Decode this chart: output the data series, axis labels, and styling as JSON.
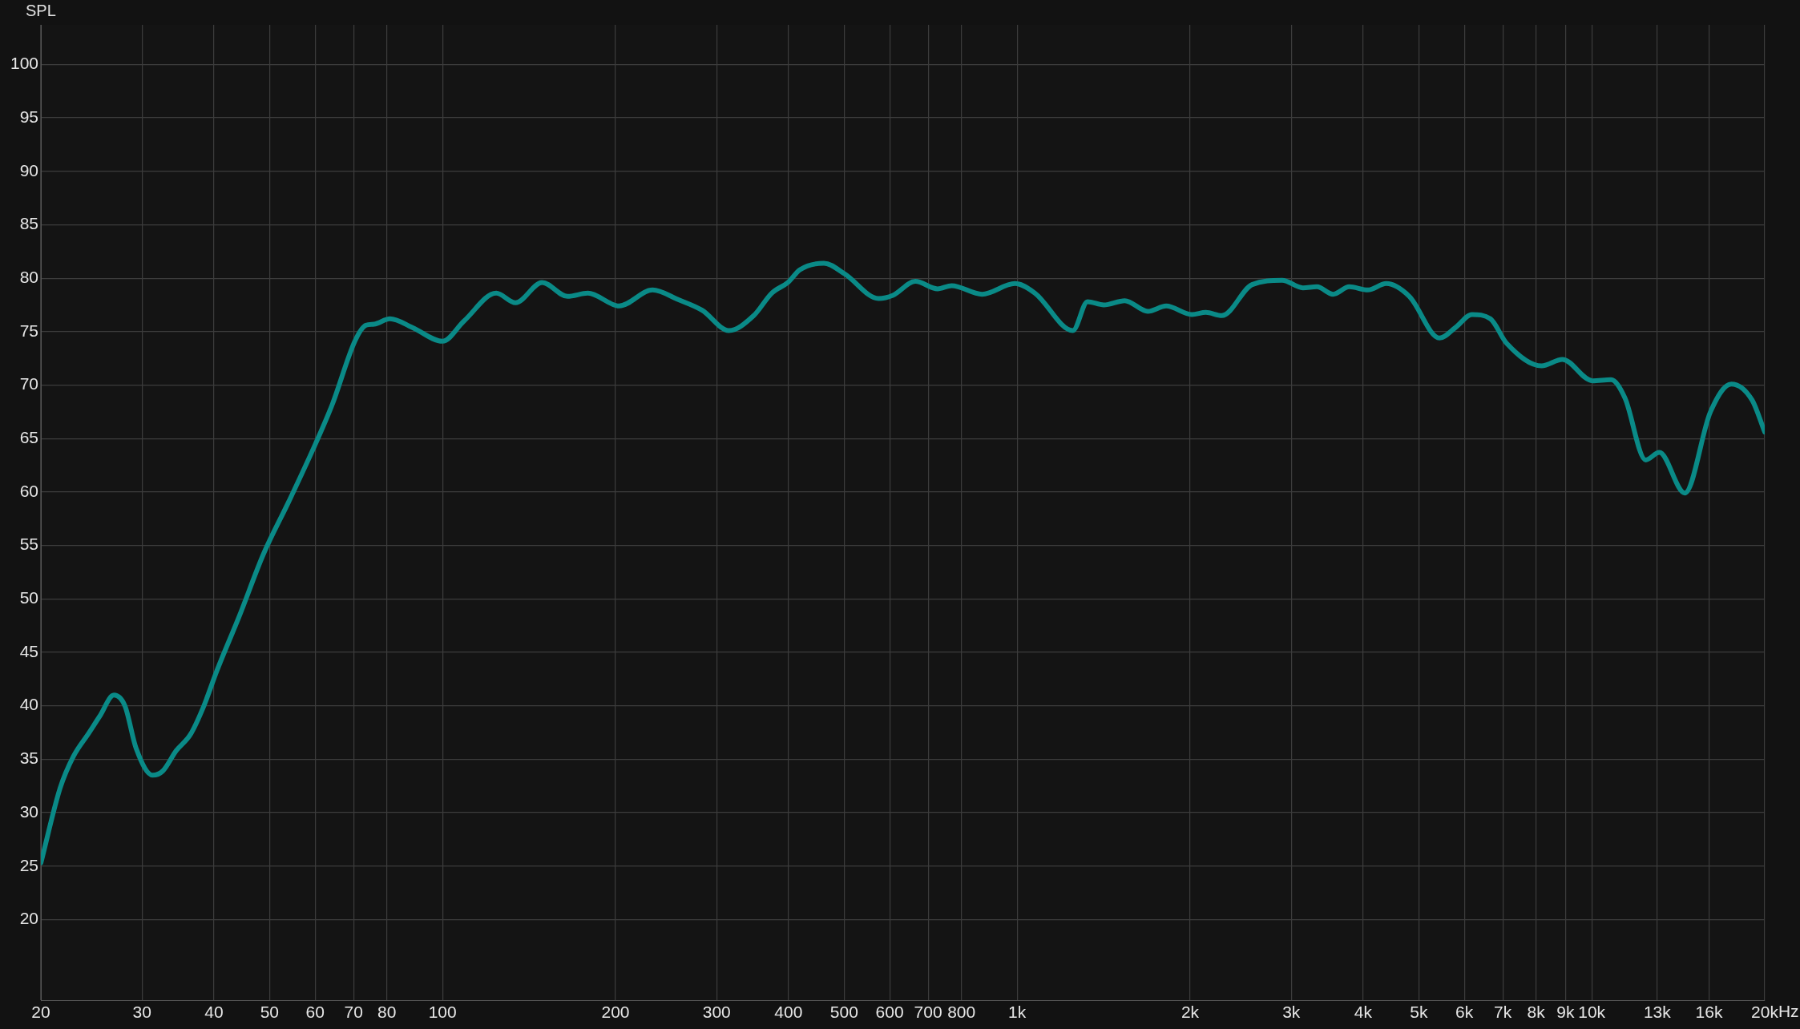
{
  "chart_data": {
    "type": "line",
    "ylabel": "SPL",
    "log": "x",
    "grid": true,
    "marker": "none",
    "line_style": "solid",
    "xlim": [
      20,
      20000
    ],
    "ylim": [
      12.4,
      103.7
    ],
    "xticks": [
      20,
      30,
      40,
      50,
      60,
      70,
      80,
      100,
      200,
      300,
      400,
      500,
      600,
      700,
      800,
      {
        "value": 1000,
        "label": "1k"
      },
      {
        "value": 2000,
        "label": "2k"
      },
      {
        "value": 3000,
        "label": "3k"
      },
      {
        "value": 4000,
        "label": "4k"
      },
      {
        "value": 5000,
        "label": "5k"
      },
      {
        "value": 6000,
        "label": "6k"
      },
      {
        "value": 7000,
        "label": "7k"
      },
      {
        "value": 8000,
        "label": "8k"
      },
      {
        "value": 9000,
        "label": "9k"
      },
      {
        "value": 10000,
        "label": "10k"
      },
      {
        "value": 13000,
        "label": "13k"
      },
      {
        "value": 16000,
        "label": "16k"
      },
      {
        "value": 20000,
        "label": "20k"
      }
    ],
    "xlabel": "Hz",
    "yticks": [
      20,
      25,
      30,
      35,
      40,
      45,
      50,
      55,
      60,
      65,
      70,
      75,
      80,
      85,
      90,
      95,
      100
    ],
    "series": [
      {
        "color": "#0a8a87",
        "x": [
          20,
          21.6,
          22.8,
          24.2,
          25.3,
          26.8,
          28,
          29.3,
          31.3,
          32.6,
          34.4,
          36.4,
          38.3,
          40.5,
          44.3,
          48.8,
          54,
          60.1,
          64.3,
          70.5,
          73.6,
          76,
          81,
          88.5,
          100,
          109,
          124,
          134,
          149,
          165,
          179,
          203,
          232,
          257,
          283,
          315,
          348,
          374,
          399,
          419,
          461,
          501,
          574,
          608,
          665,
          727,
          769,
          869,
          991,
          1074,
          1250,
          1326,
          1415,
          1539,
          1688,
          1817,
          2014,
          2130,
          2271,
          2564,
          2892,
          3142,
          3324,
          3546,
          3785,
          4076,
          4389,
          4814,
          5434,
          5796,
          6187,
          6661,
          7112,
          8180,
          8890,
          10030,
          10800,
          11420,
          12410,
          13110,
          14520,
          16090,
          17490,
          19010,
          20000
        ],
        "values": [
          25.3,
          32.3,
          35.3,
          37.4,
          39,
          41,
          40,
          36,
          33.5,
          33.9,
          35.8,
          37.3,
          39.8,
          43.3,
          48.4,
          54.2,
          59.1,
          64.5,
          68.2,
          74.2,
          75.6,
          75.7,
          76.2,
          75.4,
          74.1,
          76,
          78.6,
          77.7,
          79.6,
          78.3,
          78.6,
          77.4,
          78.9,
          78,
          77,
          75.1,
          76.5,
          78.6,
          79.6,
          80.8,
          81.4,
          80.4,
          78.1,
          78.4,
          79.7,
          79,
          79.3,
          78.5,
          79.5,
          78.6,
          75.1,
          77.8,
          77.5,
          77.9,
          76.9,
          77.4,
          76.6,
          76.8,
          76.5,
          79.4,
          79.8,
          79.1,
          79.2,
          78.5,
          79.2,
          78.9,
          79.5,
          78.3,
          74.4,
          75.4,
          76.6,
          76.2,
          73.9,
          71.8,
          72.4,
          70.4,
          70.5,
          68.8,
          63,
          63.7,
          59.9,
          67.5,
          70.1,
          68.6,
          65.6
        ]
      }
    ]
  }
}
